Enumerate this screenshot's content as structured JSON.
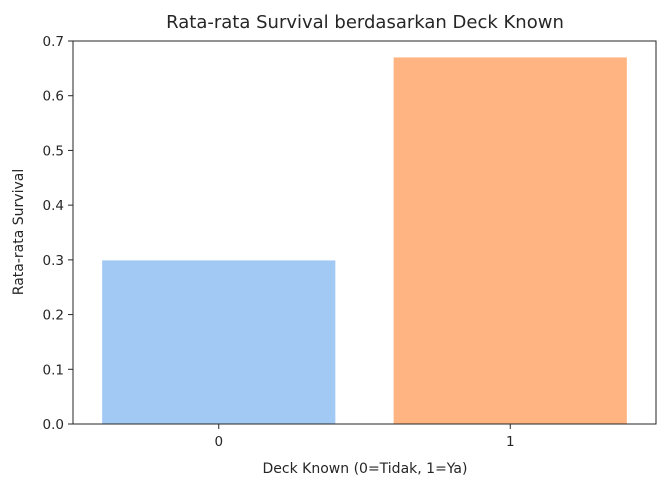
{
  "chart_data": {
    "type": "bar",
    "title": "Rata-rata Survival berdasarkan Deck Known",
    "xlabel": "Deck Known (0=Tidak, 1=Ya)",
    "ylabel": "Rata-rata Survival",
    "categories": [
      "0",
      "1"
    ],
    "values": [
      0.299,
      0.67
    ],
    "bar_colors": [
      "#a1c9f4",
      "#ffb482"
    ],
    "ylim": [
      0,
      0.7
    ],
    "yticks": [
      "0.0",
      "0.1",
      "0.2",
      "0.3",
      "0.4",
      "0.5",
      "0.6",
      "0.7"
    ],
    "grid": false,
    "legend": "none"
  }
}
